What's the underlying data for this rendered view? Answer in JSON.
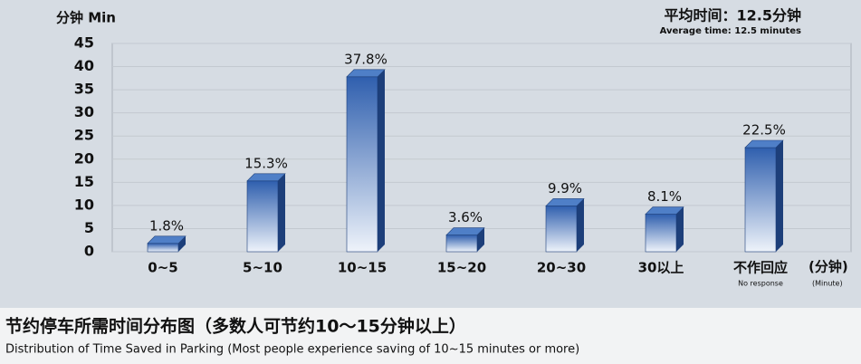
{
  "chart_data": {
    "type": "bar3d",
    "y_label": "分钟 Min",
    "annotation": [
      "平均时间：12.5分钟",
      "Average time: 12.5 minutes"
    ],
    "categories": [
      "0~5",
      "5~10",
      "10~15",
      "15~20",
      "20~30",
      "30以上",
      "不作回应"
    ],
    "no_response_label": "No response",
    "x_unit": "(分钟)",
    "x_unit_en": "(Minute)",
    "values": [
      1.8,
      15.3,
      37.8,
      3.6,
      9.9,
      8.1,
      22.5
    ],
    "value_labels": [
      "1.8%",
      "15.3%",
      "37.8%",
      "3.6%",
      "9.9%",
      "8.1%",
      "22.5%"
    ],
    "color": "#2f5fae",
    "ylim": [
      0,
      45
    ],
    "yticks": [
      0,
      5,
      10,
      15,
      20,
      25,
      30,
      35,
      40,
      45
    ],
    "grid": true,
    "caption": "节约停车所需时间分布图（多数人可节约10～15分钟以上）",
    "caption_en": "Distribution of Time Saved in Parking (Most people experience saving of 10~15 minutes or more)"
  }
}
